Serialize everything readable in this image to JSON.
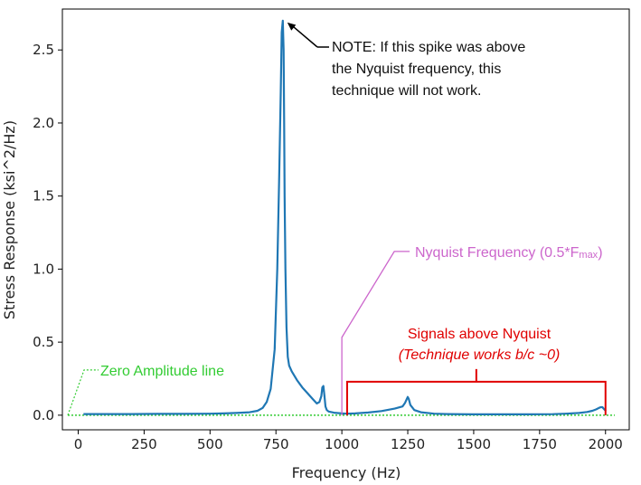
{
  "chart_data": {
    "type": "line",
    "xlabel": "Frequency (Hz)",
    "ylabel": "Stress Response (ksi^2/Hz)",
    "xlim": [
      -60,
      2090
    ],
    "ylim": [
      -0.1,
      2.78
    ],
    "xticks": [
      0,
      250,
      500,
      750,
      1000,
      1250,
      1500,
      1750,
      2000
    ],
    "yticks": [
      0.0,
      0.5,
      1.0,
      1.5,
      2.0,
      2.5
    ],
    "xtick_labels": [
      "0",
      "250",
      "500",
      "750",
      "1000",
      "1250",
      "1500",
      "1750",
      "2000"
    ],
    "ytick_labels": [
      "0.0",
      "0.5",
      "1.0",
      "1.5",
      "2.0",
      "2.5"
    ],
    "grid": false,
    "series": [
      {
        "color": "#1f77b4",
        "x": [
          20,
          100,
          200,
          300,
          400,
          500,
          550,
          600,
          650,
          680,
          700,
          715,
          730,
          745,
          755,
          762,
          768,
          772,
          776,
          779,
          781,
          783,
          786,
          790,
          795,
          800,
          810,
          830,
          850,
          870,
          890,
          905,
          915,
          922,
          926,
          930,
          934,
          938,
          943,
          950,
          970,
          1000,
          1020,
          1050,
          1100,
          1150,
          1200,
          1230,
          1240,
          1246,
          1250,
          1254,
          1260,
          1275,
          1300,
          1350,
          1400,
          1500,
          1600,
          1700,
          1800,
          1850,
          1900,
          1930,
          1950,
          1965,
          1975,
          1982,
          1988,
          1993,
          1998,
          2002
        ],
        "y": [
          0.008,
          0.008,
          0.008,
          0.009,
          0.009,
          0.01,
          0.012,
          0.015,
          0.02,
          0.03,
          0.05,
          0.09,
          0.18,
          0.45,
          1.0,
          1.6,
          2.2,
          2.62,
          2.7,
          2.5,
          2.0,
          1.5,
          1.0,
          0.6,
          0.4,
          0.34,
          0.3,
          0.24,
          0.19,
          0.15,
          0.11,
          0.08,
          0.09,
          0.13,
          0.19,
          0.2,
          0.13,
          0.06,
          0.035,
          0.025,
          0.017,
          0.012,
          0.01,
          0.012,
          0.018,
          0.028,
          0.045,
          0.06,
          0.085,
          0.11,
          0.125,
          0.11,
          0.07,
          0.035,
          0.02,
          0.01,
          0.008,
          0.006,
          0.006,
          0.006,
          0.007,
          0.01,
          0.015,
          0.022,
          0.03,
          0.04,
          0.05,
          0.055,
          0.055,
          0.045,
          0.035,
          0.03
        ]
      }
    ],
    "annotations": {
      "note": {
        "lines": [
          "NOTE: If this spike was above",
          "the Nyquist frequency, this",
          "technique will not work."
        ],
        "arrow_target_x": 776,
        "arrow_target_y": 2.7
      },
      "nyquist": {
        "label": "Nyquist Frequency (0.5*F",
        "label_sub": "max",
        "label_close": ")",
        "color": "#cc66cc",
        "x": 1000
      },
      "signals_above": {
        "line1": "Signals above Nyquist",
        "line2": "(Technique works b/c ~0)",
        "color": "#e00000",
        "x_start": 1020,
        "x_end": 2000
      },
      "zero_line": {
        "label": "Zero Amplitude line",
        "color": "#33cc33"
      }
    }
  }
}
